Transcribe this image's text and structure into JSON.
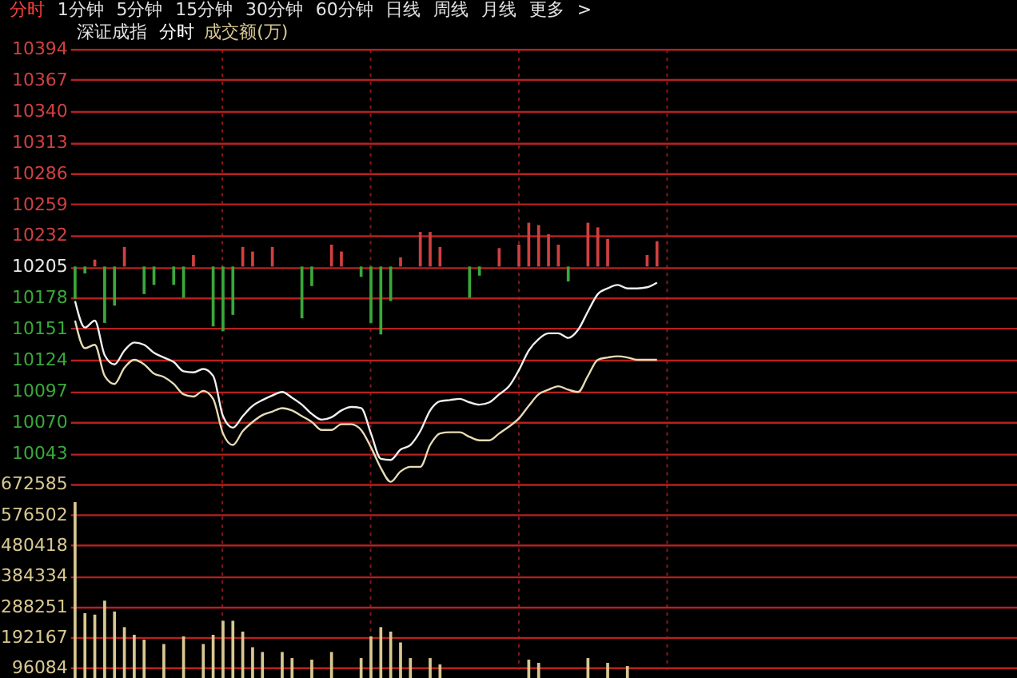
{
  "chart_data": [
    {
      "type": "line",
      "title": "深证成指",
      "subtitle": "分时",
      "annotations": [
        "分时",
        "1分钟",
        "5分钟",
        "15分钟",
        "30分钟",
        "60分钟",
        "日线",
        "周线",
        "月线",
        "更多",
        ">",
        "成交额(万)"
      ],
      "categories": [
        null,
        null,
        null,
        null,
        null,
        null,
        null,
        null,
        null,
        null,
        null,
        null,
        null,
        null,
        null,
        null,
        null,
        null,
        null,
        null,
        null,
        null,
        null,
        null,
        null,
        null,
        null,
        null,
        null,
        null,
        null,
        null,
        null,
        null,
        null,
        null,
        null,
        null,
        null,
        null,
        null,
        null,
        null,
        null,
        null,
        null,
        null,
        null,
        null,
        null,
        null,
        null,
        null,
        null,
        null,
        null,
        null,
        null,
        null,
        null,
        null,
        null,
        null,
        null,
        null,
        null,
        null,
        null,
        null,
        null,
        null,
        null,
        null,
        null,
        null,
        null,
        null,
        null,
        null,
        null,
        null,
        null,
        null,
        null,
        null,
        null,
        null,
        null,
        null,
        null,
        null,
        null,
        null,
        null,
        null,
        null
      ],
      "ylim": [
        10016,
        10394
      ],
      "yticks": [
        10043,
        10070,
        10097,
        10124,
        10151,
        10178,
        10205,
        10232,
        10259,
        10286,
        10313,
        10340,
        10367,
        10394
      ],
      "tick_labels": "y",
      "grid": true,
      "series": [
        {
          "type": "bar",
          "color": "#d04040",
          "values": [
            null,
            null,
            6,
            null,
            null,
            17,
            null,
            null,
            null,
            null,
            null,
            null,
            10,
            null,
            null,
            null,
            null,
            17,
            13,
            null,
            17,
            null,
            null,
            null,
            null,
            null,
            19,
            13,
            null,
            null,
            null,
            null,
            null,
            8,
            null,
            30,
            30,
            17,
            null,
            null,
            null,
            null,
            null,
            16,
            null,
            19,
            38,
            36,
            28,
            19,
            null,
            null,
            38,
            34,
            24,
            null,
            null,
            null,
            10,
            22,
            null,
            null,
            null,
            null,
            null,
            null,
            null,
            null,
            null,
            null,
            null,
            null,
            null,
            null,
            null,
            null,
            null,
            null,
            null,
            null,
            null,
            null,
            null,
            null,
            null,
            null,
            null,
            null,
            null,
            null,
            null,
            null,
            null,
            null,
            null,
            null
          ],
          "base": [
            null,
            null,
            10205,
            null,
            null,
            10205,
            null,
            null,
            null,
            null,
            null,
            null,
            10205,
            null,
            null,
            null,
            null,
            10205,
            10205,
            null,
            10205,
            null,
            null,
            null,
            null,
            null,
            10205,
            10205,
            null,
            null,
            null,
            null,
            null,
            10205,
            null,
            10205,
            10205,
            10205,
            null,
            null,
            null,
            null,
            null,
            10205,
            null,
            10205,
            10205,
            10205,
            10205,
            10205,
            null,
            null,
            10205,
            10205,
            10205,
            null,
            null,
            null,
            10205,
            10205,
            null,
            null,
            null,
            null,
            null,
            null,
            null,
            null,
            null,
            null,
            null,
            null,
            null,
            null,
            null,
            null,
            null,
            null,
            null,
            null,
            null,
            null,
            null,
            null,
            null,
            null,
            null,
            null,
            null,
            null,
            null,
            null,
            null,
            null,
            null,
            null
          ]
        },
        {
          "type": "bar",
          "color": "#3aa83a",
          "values": [
            -28,
            -6,
            null,
            -49,
            -34,
            null,
            null,
            -24,
            -16,
            null,
            -16,
            -27,
            null,
            null,
            -52,
            -56,
            -42,
            null,
            null,
            null,
            null,
            null,
            null,
            -45,
            -17,
            null,
            null,
            null,
            null,
            -9,
            -49,
            -59,
            -30,
            null,
            null,
            null,
            null,
            null,
            null,
            null,
            -27,
            -8,
            null,
            null,
            null,
            null,
            null,
            null,
            null,
            null,
            -13,
            null,
            null,
            null,
            null,
            null,
            null,
            null,
            null,
            null,
            null,
            null,
            null,
            null,
            null,
            null,
            null,
            null,
            null,
            null,
            null,
            null,
            null,
            null,
            null,
            null,
            null,
            null,
            null,
            null,
            null,
            null,
            null,
            null,
            null,
            null,
            null,
            null,
            null,
            null,
            null,
            null,
            null,
            null,
            null,
            null
          ],
          "base": [
            10205,
            10205,
            null,
            10205,
            10205,
            null,
            null,
            10205,
            10205,
            null,
            10205,
            10205,
            null,
            null,
            10205,
            10205,
            10205,
            null,
            null,
            null,
            null,
            null,
            null,
            10205,
            10205,
            null,
            null,
            null,
            null,
            10205,
            10205,
            10205,
            10205,
            null,
            null,
            null,
            null,
            null,
            null,
            null,
            10205,
            10205,
            null,
            null,
            null,
            null,
            null,
            null,
            null,
            null,
            10205,
            null,
            null,
            null,
            null,
            null,
            null,
            null,
            null,
            null,
            null,
            null,
            null,
            null,
            null,
            null,
            null,
            null,
            null,
            null,
            null,
            null,
            null,
            null,
            null,
            null,
            null,
            null,
            null,
            null,
            null,
            null,
            null,
            null,
            null,
            null,
            null,
            null,
            null,
            null,
            null,
            null,
            null,
            null,
            null,
            null
          ]
        },
        {
          "color": "#f0f0f0",
          "values": [
            10175,
            10152,
            10158,
            10128,
            10120,
            10132,
            10139,
            10137,
            10130,
            10126,
            10122,
            10114,
            10113,
            10116,
            10110,
            10075,
            10065,
            10075,
            10084,
            10089,
            10093,
            10096,
            10091,
            10085,
            10077,
            10072,
            10074,
            10080,
            10083,
            10082,
            10060,
            10038,
            10037,
            10046,
            10050,
            10062,
            10080,
            10088,
            10089,
            10090,
            10087,
            10085,
            10087,
            10094,
            10101,
            10115,
            10132,
            10142,
            10147,
            10147,
            10143,
            10150,
            10166,
            10181,
            10186,
            10189,
            10186,
            10186,
            10187,
            10191,
            null,
            null,
            null,
            null,
            null,
            null,
            null,
            null,
            null,
            null,
            null,
            null,
            null,
            null,
            null,
            null,
            null,
            null,
            null,
            null,
            null,
            null,
            null,
            null,
            null,
            null,
            null,
            null,
            null,
            null,
            null,
            null,
            null,
            null,
            null,
            null
          ]
        },
        {
          "color": "#e6dcb4",
          "values": [
            10158,
            10134,
            10137,
            10110,
            10103,
            10117,
            10124,
            10120,
            10112,
            10109,
            10103,
            10094,
            10092,
            10097,
            10090,
            10060,
            10050,
            10062,
            10070,
            10076,
            10079,
            10082,
            10080,
            10075,
            10070,
            10063,
            10063,
            10068,
            10068,
            10063,
            10048,
            10030,
            10018,
            10027,
            10031,
            10031,
            10050,
            10060,
            10061,
            10061,
            10057,
            10054,
            10054,
            10060,
            10066,
            10073,
            10084,
            10094,
            10098,
            10101,
            10098,
            10096,
            10110,
            10124,
            10126,
            10127,
            10126,
            10124,
            10124,
            10124,
            null,
            null,
            null,
            null,
            null,
            null,
            null,
            null,
            null,
            null,
            null,
            null,
            null,
            null,
            null,
            null,
            null,
            null,
            null,
            null,
            null,
            null,
            null,
            null,
            null,
            null,
            null,
            null,
            null,
            null,
            null,
            null,
            null,
            null,
            null,
            null
          ]
        }
      ]
    },
    {
      "type": "bar",
      "categories": [
        null,
        null,
        null,
        null,
        null,
        null,
        null,
        null,
        null,
        null,
        null,
        null,
        null,
        null,
        null,
        null,
        null,
        null,
        null,
        null,
        null,
        null,
        null,
        null,
        null,
        null,
        null,
        null,
        null,
        null,
        null,
        null,
        null,
        null,
        null,
        null,
        null,
        null,
        null,
        null,
        null,
        null,
        null,
        null,
        null,
        null,
        null,
        null,
        null,
        null,
        null,
        null,
        null,
        null,
        null,
        null,
        null,
        null,
        null,
        null,
        null,
        null,
        null,
        null,
        null,
        null,
        null,
        null,
        null,
        null,
        null,
        null,
        null,
        null,
        null,
        null,
        null,
        null,
        null,
        null,
        null,
        null,
        null,
        null,
        null,
        null,
        null,
        null,
        null,
        null,
        null,
        null,
        null,
        null,
        null,
        null
      ],
      "ylim": [
        92700,
        672585
      ],
      "yticks": [
        96084,
        192167,
        288251,
        384334,
        480418,
        576502,
        672585
      ],
      "tick_labels": "y",
      "grid": true,
      "series": [
        {
          "color": "#d8c890",
          "values": [
            616000,
            268000,
            263000,
            307000,
            273000,
            224000,
            200000,
            185000,
            null,
            171000,
            null,
            195000,
            null,
            171000,
            200000,
            244000,
            244000,
            210000,
            161000,
            146000,
            null,
            146000,
            127000,
            null,
            122000,
            null,
            146000,
            null,
            null,
            127000,
            195000,
            224000,
            210000,
            176000,
            127000,
            null,
            127000,
            107000,
            null,
            null,
            null,
            null,
            null,
            null,
            null,
            null,
            122000,
            112000,
            null,
            null,
            null,
            null,
            127000,
            null,
            112000,
            null,
            102000,
            null,
            null,
            null,
            null,
            null,
            null,
            null,
            null,
            null,
            null,
            null,
            null,
            null,
            null,
            null,
            null,
            null,
            null,
            null,
            null,
            null,
            null,
            null,
            null,
            null,
            null,
            null,
            null,
            null,
            null,
            null,
            null,
            null,
            null,
            null,
            null,
            null,
            null,
            null
          ]
        }
      ]
    }
  ]
}
